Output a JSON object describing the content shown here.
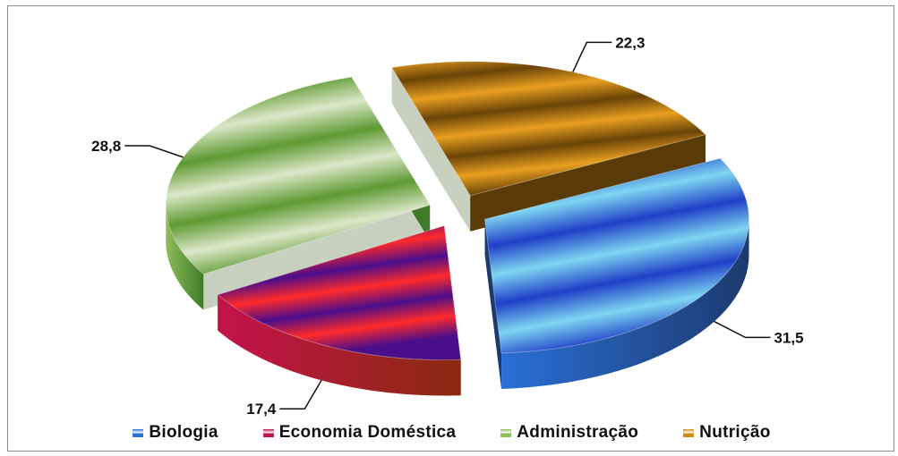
{
  "chart_data": {
    "type": "pie",
    "title": "",
    "legend_position": "bottom",
    "slices": [
      {
        "label": "Biologia",
        "value": 31.5,
        "value_label": "31,5",
        "color": "#2a6fd6",
        "side_color": "#1c3a6e",
        "top_light": "#7fd6f2",
        "top_dark": "#1f3fc8"
      },
      {
        "label": "Economia Doméstica",
        "value": 17.4,
        "value_label": "17,4",
        "color": "#c4124a",
        "side_color": "#8a2a0e",
        "top_light": "#ff2a2a",
        "top_dark": "#4b0d8a"
      },
      {
        "label": "Administração",
        "value": 28.8,
        "value_label": "28,8",
        "color": "#8fbd5a",
        "side_color": "#3f7a2a",
        "top_light": "#dce8c8",
        "top_dark": "#5e9a32"
      },
      {
        "label": "Nutrição",
        "value": 22.3,
        "value_label": "22,3",
        "color": "#d48a12",
        "side_color": "#5a3b08",
        "top_light": "#e8a020",
        "top_dark": "#6a4206"
      }
    ]
  },
  "legend": {
    "items": [
      {
        "label": "Biologia",
        "color": "#2a6fd6"
      },
      {
        "label": "Economia Doméstica",
        "color": "#c4124a"
      },
      {
        "label": "Administração",
        "color": "#8fbd5a"
      },
      {
        "label": "Nutrição",
        "color": "#d48a12"
      }
    ]
  }
}
